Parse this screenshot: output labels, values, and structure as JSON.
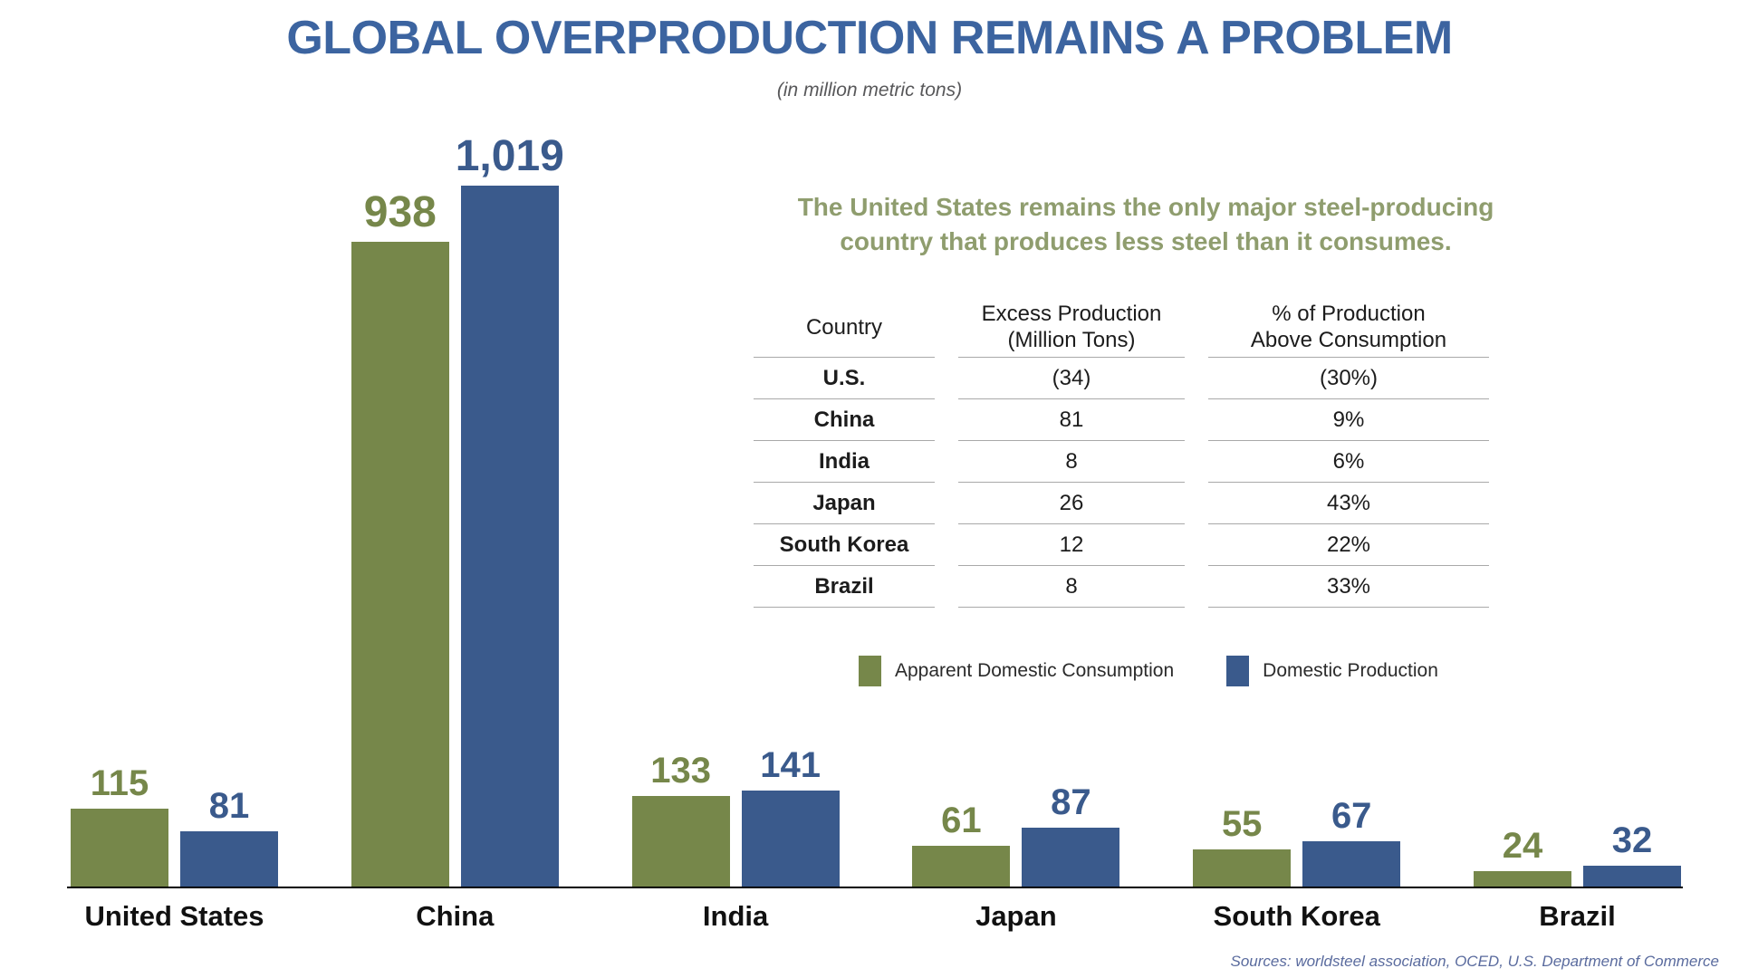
{
  "title": "GLOBAL OVERPRODUCTION REMAINS A PROBLEM",
  "subtitle": "(in million metric tons)",
  "insight": {
    "lines": [
      "The United States remains the only major steel-producing",
      "country that produces less steel than it consumes."
    ]
  },
  "table": {
    "columns": [
      {
        "label": "Country",
        "sublabel": ""
      },
      {
        "label": "Excess Production",
        "sublabel": "(Million Tons)"
      },
      {
        "label": "% of Production",
        "sublabel": "Above Consumption"
      }
    ],
    "rows": [
      {
        "country": "U.S.",
        "excess": "(34)",
        "pct": "(30%)"
      },
      {
        "country": "China",
        "excess": "81",
        "pct": "9%"
      },
      {
        "country": "India",
        "excess": "8",
        "pct": "6%"
      },
      {
        "country": "Japan",
        "excess": "26",
        "pct": "43%"
      },
      {
        "country": "South Korea",
        "excess": "12",
        "pct": "22%"
      },
      {
        "country": "Brazil",
        "excess": "8",
        "pct": "33%"
      }
    ]
  },
  "legend": {
    "items": [
      {
        "label": "Apparent Domestic Consumption",
        "color": "#76874a"
      },
      {
        "label": "Domestic Production",
        "color": "#3a5a8c"
      }
    ]
  },
  "chart_data": {
    "type": "bar",
    "title": "GLOBAL OVERPRODUCTION REMAINS A PROBLEM",
    "subtitle": "(in million metric tons)",
    "unit": "million metric tons",
    "categories": [
      "United States",
      "China",
      "India",
      "Japan",
      "South Korea",
      "Brazil"
    ],
    "series": [
      {
        "name": "Apparent Domestic Consumption",
        "color": "#76874a",
        "values": [
          115,
          938,
          133,
          61,
          55,
          24
        ]
      },
      {
        "name": "Domestic Production",
        "color": "#3a5a8c",
        "values": [
          81,
          1019,
          141,
          87,
          67,
          32
        ]
      }
    ],
    "ylim": [
      0,
      1019
    ],
    "grid": false,
    "legend_position": "center-right"
  },
  "footer": {
    "sources": "Sources: worldsteel association, OCED, U.S. Department of Commerce"
  },
  "colors": {
    "title_blue": "#3c64a0",
    "consumption_green": "#76874a",
    "production_blue": "#3a5a8c",
    "insight_green": "#8f9d6e",
    "table_rule": "#a9a9a9"
  }
}
